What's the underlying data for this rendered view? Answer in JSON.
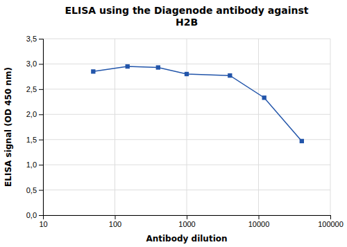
{
  "chart_data": {
    "type": "line",
    "title": "ELISA using the Diagenode antibody against\nH2B",
    "xlabel": "Antibody dilution",
    "ylabel": "ELISA signal (OD 450  nm)",
    "x": [
      50,
      150,
      400,
      1000,
      4000,
      12000,
      40000
    ],
    "values": [
      2.85,
      2.95,
      2.93,
      2.8,
      2.77,
      2.33,
      1.47
    ],
    "color": "#2255AA",
    "marker": "square",
    "log": "x",
    "xlim": [
      10,
      100000
    ],
    "ylim": [
      0.0,
      3.5
    ],
    "xticks": [
      10,
      100,
      1000,
      10000,
      100000
    ],
    "yticks": [
      {
        "value": 0.0,
        "label": "0,0"
      },
      {
        "value": 0.5,
        "label": "0,5"
      },
      {
        "value": 1.0,
        "label": "1,0"
      },
      {
        "value": 1.5,
        "label": "1,5"
      },
      {
        "value": 2.0,
        "label": "2,0"
      },
      {
        "value": 2.5,
        "label": "2,5"
      },
      {
        "value": 3.0,
        "label": "3,0"
      },
      {
        "value": 3.5,
        "label": "3,5"
      }
    ],
    "grid": true
  }
}
